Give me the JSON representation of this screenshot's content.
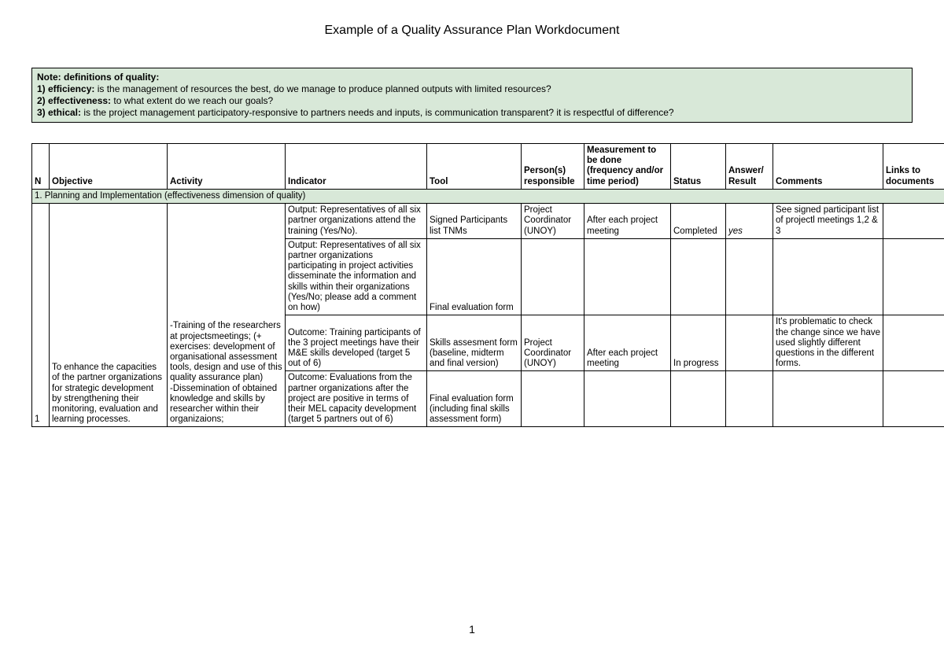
{
  "title": "Example of a Quality Assurance Plan Workdocument",
  "note": {
    "heading": "Note: definitions of quality:",
    "l1_label": "1) efficiency: ",
    "l1_text": "is the management of resources the best, do we manage to produce planned outputs with limited resources?",
    "l2_label": "2) effectiveness: ",
    "l2_text": "to what extent do we reach our goals?",
    "l3_label": "3) ethical: ",
    "l3_text": "is the project management participatory-responsive to partners needs and inputs, is communication transparent? it is respectful of difference?"
  },
  "headers": {
    "n": "N",
    "objective": "Objective",
    "activity": "Activity",
    "indicator": "Indicator",
    "tool": "Tool",
    "persons": "Person(s) responsible",
    "measurement": "Measurement to be done (frequency and/or time period)",
    "status": "Status",
    "answer": "Answer/Result",
    "comments": "Comments",
    "links": "Links to documents"
  },
  "section": "1. Planning and Implementation (effectiveness dimension of quality)",
  "row_n": "1",
  "objective": "To enhance the capacities of the partner organizations for strategic development by strengthening their monitoring, evaluation and learning processes.",
  "activity": "-Training of the researchers at projectsmeetings; (+ exercises: development of organisational assessment tools, design and use of this quality assurance plan)\n-Dissemination of obtained knowledge and skills by researcher within their organizaions;",
  "r1": {
    "indicator": "Output: Representatives of all six partner organizations attend the training (Yes/No).",
    "tool": "Signed Participants list TNMs",
    "persons": "Project Coordinator (UNOY)",
    "measurement": "After each project meeting",
    "status": "Completed",
    "answer": "yes",
    "comments": "See signed participant list of projectl meetings 1,2 & 3",
    "links": ""
  },
  "r2": {
    "indicator": "Output: Representatives of all six partner organizations participating in project activities disseminate the information and skills within their organizations (Yes/No; please add a comment on how)",
    "tool": "Final evaluation form",
    "persons": "",
    "measurement": "",
    "status": "",
    "answer": "",
    "comments": "",
    "links": ""
  },
  "r3": {
    "indicator": "Outcome: Training participants of the 3 project meetings have their M&E skills developed (target 5 out of 6)",
    "tool": "Skills assesment form (baseline, midterm and final version)",
    "persons": "Project Coordinator (UNOY)",
    "measurement": "After each project meeting",
    "status": "In progress",
    "answer": "",
    "comments": "It's problematic to check the change since we have used slightly different questions in the different forms.",
    "links": ""
  },
  "r4": {
    "indicator": "Outcome: Evaluations  from the partner organizations after the project are positive in terms of their  MEL capacity development (target 5 partners out of 6)",
    "tool": "Final evaluation form (including final skills assessment form)",
    "persons": "",
    "measurement": "",
    "status": "",
    "answer": "",
    "comments": "",
    "links": ""
  },
  "page_number": "1",
  "colors": {
    "section_bg": "#d8e8d8",
    "note_bg": "#d8e8d8",
    "border": "#000000",
    "text": "#000000",
    "page_bg": "#ffffff"
  }
}
